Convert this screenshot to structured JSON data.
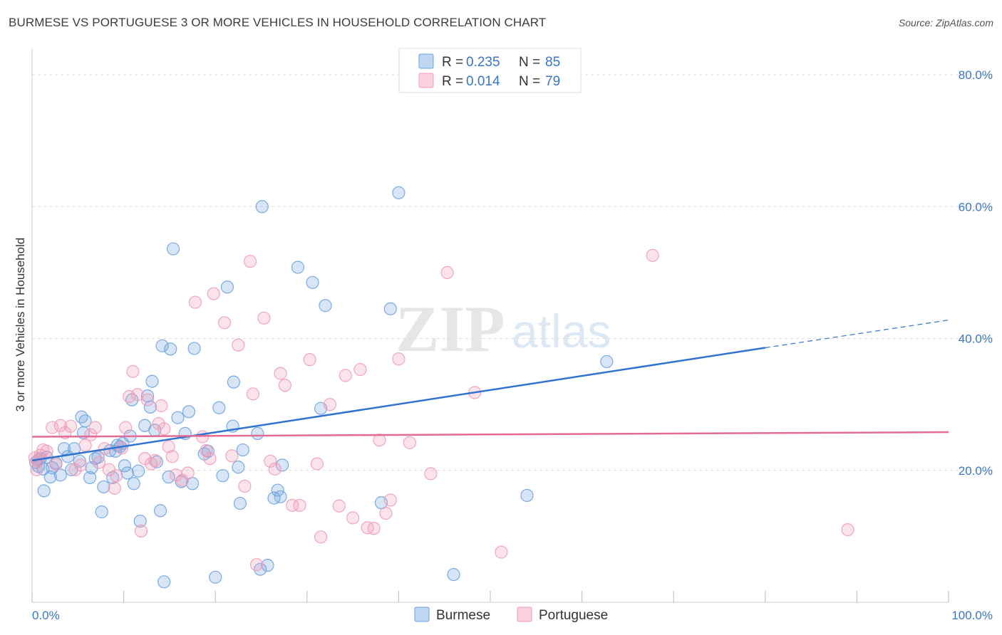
{
  "title": "BURMESE VS PORTUGUESE 3 OR MORE VEHICLES IN HOUSEHOLD CORRELATION CHART",
  "source": "Source: ZipAtlas.com",
  "watermark": {
    "zip": "ZIP",
    "atlas": "atlas"
  },
  "legend_top": [
    {
      "r_label": "R =",
      "r_value": "0.235",
      "n_label": "N =",
      "n_value": "85",
      "color": "#8ab4e8"
    },
    {
      "r_label": "R =",
      "r_value": "0.014",
      "n_label": "N =",
      "n_value": "79",
      "color": "#f4a9bf"
    }
  ],
  "legend_bottom": [
    {
      "label": "Burmese",
      "color": "#8ab4e8"
    },
    {
      "label": "Portuguese",
      "color": "#f4a9bf"
    }
  ],
  "colors": {
    "burmese": "#6fa3e0",
    "portuguese": "#f19cb6",
    "burmese_line": "#2f74d0",
    "portuguese_line": "#e46b96",
    "axis_label": "#3a75c4",
    "grid": "#dddddd"
  },
  "chart_data": {
    "type": "scatter",
    "title": "BURMESE VS PORTUGUESE 3 OR MORE VEHICLES IN HOUSEHOLD CORRELATION CHART",
    "xlabel": "",
    "ylabel": "3 or more Vehicles in Household",
    "xlim": [
      0,
      100
    ],
    "ylim": [
      0,
      84
    ],
    "x_tick_labels": [
      {
        "value": 0,
        "label": "0.0%"
      },
      {
        "value": 100,
        "label": "100.0%"
      }
    ],
    "y_tick_labels": [
      {
        "value": 20,
        "label": "20.0%"
      },
      {
        "value": 40,
        "label": "40.0%"
      },
      {
        "value": 60,
        "label": "60.0%"
      },
      {
        "value": 80,
        "label": "80.0%"
      }
    ],
    "grid": true,
    "legend_position": "top-center",
    "series": [
      {
        "name": "Burmese",
        "r": 0.235,
        "n": 85,
        "trend": {
          "x": [
            0,
            80
          ],
          "y": [
            21.5,
            38.6
          ],
          "dashed_extension_to_x": 100,
          "dashed_end_y": 42.8
        },
        "points": [
          [
            0.4,
            21.2
          ],
          [
            0.7,
            20.6
          ],
          [
            0.9,
            21.8
          ],
          [
            1.3,
            16.9
          ],
          [
            1.6,
            22.0
          ],
          [
            2.0,
            19.0
          ],
          [
            2.2,
            20.4
          ],
          [
            2.6,
            21.1
          ],
          [
            3.1,
            19.3
          ],
          [
            3.5,
            23.3
          ],
          [
            3.9,
            22.1
          ],
          [
            4.3,
            20.1
          ],
          [
            4.6,
            23.3
          ],
          [
            5.2,
            21.4
          ],
          [
            5.4,
            28.1
          ],
          [
            5.6,
            25.7
          ],
          [
            5.8,
            27.5
          ],
          [
            6.3,
            18.9
          ],
          [
            6.5,
            20.4
          ],
          [
            6.9,
            21.8
          ],
          [
            7.2,
            22.0
          ],
          [
            7.6,
            13.7
          ],
          [
            7.8,
            17.5
          ],
          [
            8.5,
            23.0
          ],
          [
            8.8,
            18.9
          ],
          [
            9.1,
            22.9
          ],
          [
            9.3,
            23.8
          ],
          [
            9.6,
            23.6
          ],
          [
            9.9,
            24.1
          ],
          [
            10.1,
            20.7
          ],
          [
            10.4,
            19.6
          ],
          [
            10.7,
            25.2
          ],
          [
            10.9,
            30.7
          ],
          [
            11.1,
            18.0
          ],
          [
            11.6,
            19.9
          ],
          [
            11.8,
            12.3
          ],
          [
            12.3,
            26.8
          ],
          [
            12.6,
            31.3
          ],
          [
            12.9,
            29.6
          ],
          [
            13.1,
            33.5
          ],
          [
            13.4,
            26.1
          ],
          [
            13.6,
            21.3
          ],
          [
            14.0,
            13.9
          ],
          [
            14.2,
            38.9
          ],
          [
            14.4,
            3.1
          ],
          [
            14.9,
            19.0
          ],
          [
            15.1,
            38.4
          ],
          [
            15.4,
            53.6
          ],
          [
            15.9,
            28.0
          ],
          [
            16.3,
            18.3
          ],
          [
            16.7,
            25.6
          ],
          [
            17.1,
            28.9
          ],
          [
            17.5,
            18.0
          ],
          [
            17.7,
            38.5
          ],
          [
            18.8,
            22.5
          ],
          [
            19.2,
            22.9
          ],
          [
            20.0,
            3.8
          ],
          [
            20.4,
            29.5
          ],
          [
            20.8,
            19.2
          ],
          [
            21.3,
            47.8
          ],
          [
            21.9,
            26.7
          ],
          [
            22.0,
            33.4
          ],
          [
            22.5,
            20.5
          ],
          [
            22.7,
            15.0
          ],
          [
            23.0,
            23.1
          ],
          [
            24.6,
            25.6
          ],
          [
            24.9,
            5.0
          ],
          [
            25.1,
            60.0
          ],
          [
            25.7,
            5.6
          ],
          [
            26.4,
            15.8
          ],
          [
            26.8,
            17.0
          ],
          [
            27.1,
            16.0
          ],
          [
            27.3,
            20.8
          ],
          [
            29.0,
            50.8
          ],
          [
            30.6,
            48.5
          ],
          [
            31.5,
            29.4
          ],
          [
            32.0,
            45.0
          ],
          [
            38.1,
            15.1
          ],
          [
            39.1,
            44.5
          ],
          [
            40.0,
            62.1
          ],
          [
            46.0,
            4.2
          ],
          [
            54.0,
            16.2
          ],
          [
            62.7,
            36.5
          ],
          [
            0.7,
            21.6
          ],
          [
            1.2,
            20.2
          ]
        ]
      },
      {
        "name": "Portuguese",
        "r": 0.014,
        "n": 79,
        "trend": {
          "x": [
            0,
            100
          ],
          "y": [
            25.1,
            25.8
          ]
        },
        "points": [
          [
            0.3,
            21.9
          ],
          [
            0.6,
            21.4
          ],
          [
            0.9,
            22.3
          ],
          [
            1.2,
            23.1
          ],
          [
            1.6,
            22.9
          ],
          [
            2.2,
            26.5
          ],
          [
            2.6,
            20.9
          ],
          [
            3.1,
            26.8
          ],
          [
            3.6,
            25.7
          ],
          [
            4.2,
            26.7
          ],
          [
            4.7,
            20.1
          ],
          [
            5.3,
            20.8
          ],
          [
            5.8,
            23.8
          ],
          [
            6.4,
            25.4
          ],
          [
            6.9,
            26.5
          ],
          [
            7.3,
            21.2
          ],
          [
            7.9,
            23.3
          ],
          [
            8.4,
            20.1
          ],
          [
            9.0,
            17.3
          ],
          [
            9.2,
            19.2
          ],
          [
            9.8,
            23.4
          ],
          [
            10.2,
            26.5
          ],
          [
            10.6,
            31.2
          ],
          [
            11.0,
            35.0
          ],
          [
            11.5,
            31.5
          ],
          [
            11.9,
            10.8
          ],
          [
            12.3,
            21.8
          ],
          [
            12.6,
            30.7
          ],
          [
            13.0,
            21.0
          ],
          [
            13.4,
            21.5
          ],
          [
            13.8,
            27.1
          ],
          [
            14.1,
            29.8
          ],
          [
            14.4,
            26.3
          ],
          [
            14.9,
            23.6
          ],
          [
            15.3,
            22.1
          ],
          [
            15.7,
            19.3
          ],
          [
            16.4,
            18.5
          ],
          [
            17.0,
            19.6
          ],
          [
            17.8,
            45.5
          ],
          [
            18.6,
            25.1
          ],
          [
            19.0,
            23.0
          ],
          [
            19.4,
            21.8
          ],
          [
            19.8,
            46.8
          ],
          [
            21.0,
            42.4
          ],
          [
            21.8,
            22.2
          ],
          [
            22.5,
            39.0
          ],
          [
            23.2,
            17.6
          ],
          [
            23.8,
            51.7
          ],
          [
            24.1,
            31.6
          ],
          [
            24.5,
            5.7
          ],
          [
            25.3,
            43.1
          ],
          [
            26.0,
            21.4
          ],
          [
            26.5,
            20.2
          ],
          [
            27.1,
            34.7
          ],
          [
            27.6,
            32.9
          ],
          [
            28.4,
            14.7
          ],
          [
            29.2,
            14.7
          ],
          [
            30.3,
            36.8
          ],
          [
            31.1,
            21.0
          ],
          [
            31.5,
            9.9
          ],
          [
            32.5,
            30.0
          ],
          [
            33.5,
            14.6
          ],
          [
            34.2,
            34.4
          ],
          [
            35.0,
            12.8
          ],
          [
            35.8,
            35.3
          ],
          [
            36.6,
            11.3
          ],
          [
            37.3,
            11.2
          ],
          [
            37.9,
            24.6
          ],
          [
            38.6,
            13.5
          ],
          [
            39.1,
            15.5
          ],
          [
            40.0,
            36.9
          ],
          [
            41.2,
            24.2
          ],
          [
            43.5,
            19.5
          ],
          [
            45.3,
            50.0
          ],
          [
            48.3,
            31.8
          ],
          [
            51.2,
            7.6
          ],
          [
            67.7,
            52.6
          ],
          [
            89.0,
            11.0
          ],
          [
            0.5,
            20.1
          ]
        ]
      }
    ]
  }
}
